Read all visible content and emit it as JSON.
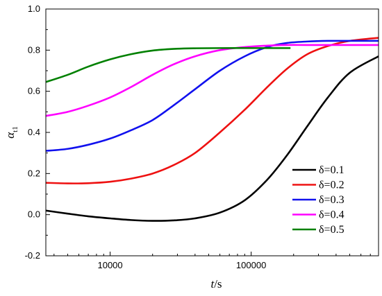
{
  "chart_data": {
    "type": "line",
    "xscale": "log",
    "xlim": [
      3500,
      800000
    ],
    "ylim": [
      -0.2,
      1.0
    ],
    "xlabel": {
      "var": "t",
      "unit": "/s"
    },
    "ylabel": {
      "var": "α",
      "sub": "t1"
    },
    "x_tick_labels": [
      {
        "value": 10000,
        "label": "10000"
      },
      {
        "value": 100000,
        "label": "100000"
      }
    ],
    "y_tick_labels": [
      {
        "value": -0.2,
        "label": "-0.2"
      },
      {
        "value": 0.0,
        "label": "0.0"
      },
      {
        "value": 0.2,
        "label": "0.2"
      },
      {
        "value": 0.4,
        "label": "0.4"
      },
      {
        "value": 0.6,
        "label": "0.6"
      },
      {
        "value": 0.8,
        "label": "0.8"
      },
      {
        "value": 1.0,
        "label": "1.0"
      }
    ],
    "legend_position": "bottom-right",
    "series": [
      {
        "name": "δ=0.1",
        "color": "#000000",
        "points": [
          [
            3500,
            0.02
          ],
          [
            5000,
            0.005
          ],
          [
            7000,
            -0.008
          ],
          [
            10000,
            -0.018
          ],
          [
            14000,
            -0.026
          ],
          [
            20000,
            -0.03
          ],
          [
            28000,
            -0.028
          ],
          [
            40000,
            -0.018
          ],
          [
            60000,
            0.01
          ],
          [
            90000,
            0.07
          ],
          [
            130000,
            0.17
          ],
          [
            180000,
            0.29
          ],
          [
            250000,
            0.43
          ],
          [
            350000,
            0.57
          ],
          [
            500000,
            0.69
          ],
          [
            800000,
            0.77
          ]
        ]
      },
      {
        "name": "δ=0.2",
        "color": "#ee1111",
        "points": [
          [
            3500,
            0.155
          ],
          [
            5000,
            0.152
          ],
          [
            7000,
            0.153
          ],
          [
            10000,
            0.16
          ],
          [
            14000,
            0.175
          ],
          [
            20000,
            0.2
          ],
          [
            28000,
            0.24
          ],
          [
            40000,
            0.3
          ],
          [
            60000,
            0.4
          ],
          [
            90000,
            0.51
          ],
          [
            130000,
            0.62
          ],
          [
            180000,
            0.71
          ],
          [
            250000,
            0.78
          ],
          [
            350000,
            0.82
          ],
          [
            500000,
            0.845
          ],
          [
            800000,
            0.86
          ]
        ]
      },
      {
        "name": "δ=0.3",
        "color": "#1111ee",
        "points": [
          [
            3500,
            0.31
          ],
          [
            5000,
            0.32
          ],
          [
            7000,
            0.34
          ],
          [
            10000,
            0.37
          ],
          [
            14000,
            0.41
          ],
          [
            20000,
            0.46
          ],
          [
            28000,
            0.53
          ],
          [
            40000,
            0.61
          ],
          [
            60000,
            0.7
          ],
          [
            90000,
            0.77
          ],
          [
            130000,
            0.815
          ],
          [
            180000,
            0.835
          ],
          [
            250000,
            0.842
          ],
          [
            350000,
            0.845
          ],
          [
            500000,
            0.845
          ],
          [
            800000,
            0.845
          ]
        ]
      },
      {
        "name": "δ=0.4",
        "color": "#ff00ff",
        "points": [
          [
            3500,
            0.48
          ],
          [
            5000,
            0.5
          ],
          [
            7000,
            0.53
          ],
          [
            10000,
            0.57
          ],
          [
            14000,
            0.62
          ],
          [
            20000,
            0.68
          ],
          [
            28000,
            0.73
          ],
          [
            40000,
            0.77
          ],
          [
            60000,
            0.8
          ],
          [
            90000,
            0.815
          ],
          [
            130000,
            0.822
          ],
          [
            180000,
            0.825
          ],
          [
            250000,
            0.825
          ],
          [
            500000,
            0.825
          ],
          [
            800000,
            0.825
          ]
        ]
      },
      {
        "name": "δ=0.5",
        "color": "#008000",
        "points": [
          [
            3500,
            0.645
          ],
          [
            5000,
            0.68
          ],
          [
            7000,
            0.72
          ],
          [
            10000,
            0.755
          ],
          [
            14000,
            0.78
          ],
          [
            20000,
            0.798
          ],
          [
            28000,
            0.806
          ],
          [
            40000,
            0.809
          ],
          [
            60000,
            0.81
          ],
          [
            100000,
            0.81
          ],
          [
            150000,
            0.81
          ],
          [
            190000,
            0.81
          ]
        ]
      }
    ]
  }
}
